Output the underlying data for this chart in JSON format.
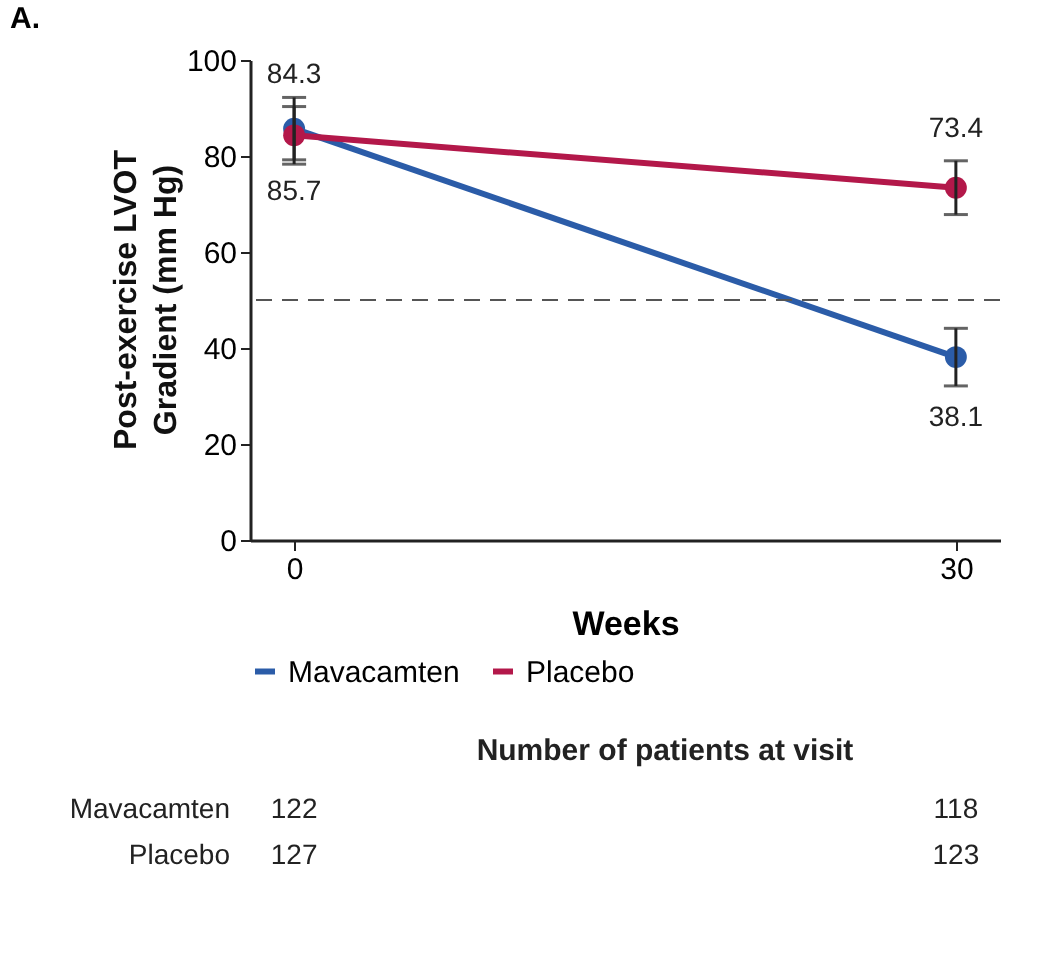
{
  "chart_data": {
    "type": "line",
    "title": "A.",
    "xlabel": "Weeks",
    "ylabel": "Post-exercise LVOT\nGradient (mm Hg)",
    "x": [
      0,
      30
    ],
    "xlim": [
      -2,
      32
    ],
    "xticks": [
      0,
      30
    ],
    "ylim": [
      0,
      100
    ],
    "yticks": [
      0,
      20,
      40,
      60,
      80,
      100
    ],
    "grid": false,
    "legend": "bottom",
    "marker": "circle",
    "line_style": "solid",
    "series": [
      {
        "name": "Mavacamten",
        "color": "#2b5ca8",
        "values": [
          85.7,
          38.1
        ],
        "errors": [
          6.5,
          6
        ],
        "value_labels": [
          "85.7",
          "38.1"
        ]
      },
      {
        "name": "Placebo",
        "color": "#b3184a",
        "values": [
          84.3,
          73.4
        ],
        "errors": [
          6,
          5.6
        ],
        "value_labels": [
          "84.3",
          "73.4"
        ]
      }
    ],
    "ref_lines": [
      {
        "axis": "y",
        "value": 50,
        "color": "#555555",
        "line_style": "dashed"
      }
    ],
    "annotations": [
      "Number of patients at visit",
      "Mavacamten",
      "122",
      "118",
      "Placebo",
      "127",
      "123"
    ]
  }
}
